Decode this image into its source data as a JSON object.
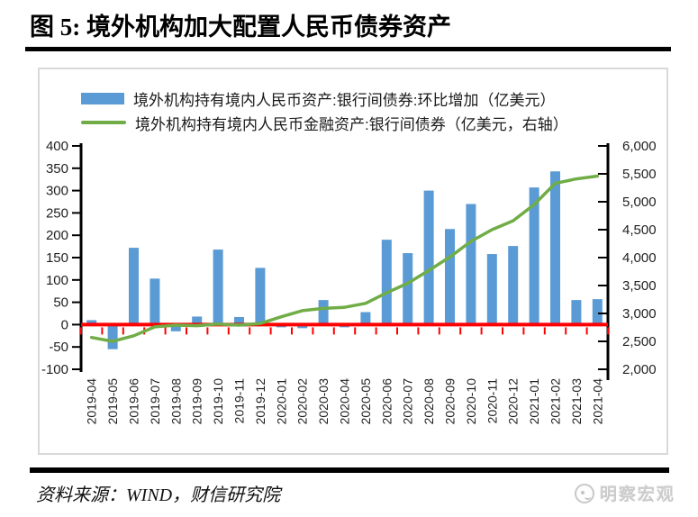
{
  "header": {
    "title": "图 5:  境外机构加大配置人民币债券资产"
  },
  "footer": {
    "source": "资料来源：WIND，财信研究院",
    "watermark": "明察宏观",
    "watermark_icon": "face-logo-icon"
  },
  "legend": [
    {
      "label": "境外机构持有境内人民币资产:银行间债券:环比增加（亿美元）",
      "marker": "bar-swatch",
      "color": "#5B9BD5"
    },
    {
      "label": "境外机构持有境内人民币金融资产:银行间债券（亿美元，右轴）",
      "marker": "line-swatch",
      "color": "#70AD47"
    }
  ],
  "chart_data": {
    "type": "combo-bar-line",
    "title": "境外机构加大配置人民币债券资产",
    "grid": false,
    "legend_position": "top-left",
    "categories": [
      "2019-04",
      "2019-05",
      "2019-06",
      "2019-07",
      "2019-08",
      "2019-09",
      "2019-10",
      "2019-11",
      "2019-12",
      "2020-01",
      "2020-02",
      "2020-03",
      "2020-04",
      "2020-05",
      "2020-06",
      "2020-07",
      "2020-08",
      "2020-09",
      "2020-10",
      "2020-11",
      "2020-12",
      "2021-01",
      "2021-02",
      "2021-03",
      "2021-04"
    ],
    "series": [
      {
        "name": "境外机构持有境内人民币资产:银行间债券:环比增加（亿美元）",
        "type": "bar",
        "axis": "left",
        "color": "#5B9BD5",
        "values": [
          10,
          -55,
          172,
          103,
          -15,
          18,
          168,
          17,
          127,
          -6,
          -8,
          55,
          -6,
          28,
          190,
          160,
          300,
          214,
          270,
          158,
          176,
          307,
          343,
          55,
          57
        ]
      },
      {
        "name": "境外机构持有境内人民币金融资产:银行间债券（亿美元，右轴）",
        "type": "line",
        "axis": "right",
        "color": "#70AD47",
        "values": [
          2570,
          2500,
          2600,
          2760,
          2790,
          2780,
          2810,
          2790,
          2820,
          2940,
          3050,
          3090,
          3110,
          3180,
          3370,
          3540,
          3770,
          4010,
          4290,
          4500,
          4660,
          4950,
          5330,
          5410,
          5460
        ]
      }
    ],
    "left_axis": {
      "min": -100,
      "max": 400,
      "step": 50,
      "tick_labels": [
        "400",
        "350",
        "300",
        "250",
        "200",
        "150",
        "100",
        "50",
        "0",
        "-50",
        "-100"
      ]
    },
    "right_axis": {
      "min": 2000,
      "max": 6000,
      "step": 500,
      "tick_labels": [
        "6,000",
        "5,500",
        "5,000",
        "4,500",
        "4,000",
        "3,500",
        "3,000",
        "2,500",
        "2,000"
      ]
    },
    "zero_line": {
      "color": "#FF0000"
    },
    "axis_color": "#000000",
    "label_color": "#1f1f1f"
  }
}
